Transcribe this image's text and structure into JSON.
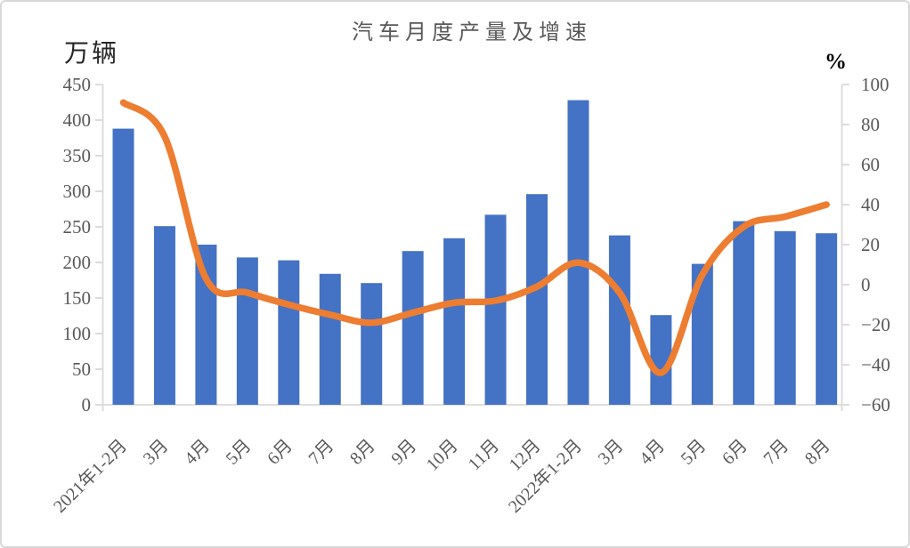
{
  "frame": {
    "background": "#ffffff",
    "border_color": "#d9d9d9"
  },
  "chart_data": {
    "type": "bar",
    "subtype": "bar+line-combo",
    "title": "汽车月度产量及增速",
    "gridlines": "off",
    "legend_position": "none",
    "axis_color": "#d9d9d9",
    "label_color": "#595959",
    "title_color": "#595959",
    "categories": [
      "2021年1-2月",
      "3月",
      "4月",
      "5月",
      "6月",
      "7月",
      "8月",
      "9月",
      "10月",
      "11月",
      "12月",
      "2022年1-2月",
      "3月",
      "4月",
      "5月",
      "6月",
      "7月",
      "8月"
    ],
    "left_axis": {
      "unit_label": "万辆",
      "range": [
        0,
        450
      ],
      "ticks": [
        450,
        400,
        350,
        300,
        250,
        200,
        150,
        100,
        50,
        0
      ]
    },
    "right_axis": {
      "unit_label": "%",
      "range": [
        -60,
        100
      ],
      "ticks": [
        100,
        80,
        60,
        40,
        20,
        0,
        -20,
        -40,
        -60
      ]
    },
    "series": [
      {
        "name": "产量",
        "type": "bar",
        "axis": "left",
        "color": "#4472C4",
        "values": [
          388,
          251,
          225,
          207,
          203,
          184,
          171,
          216,
          234,
          267,
          296,
          428,
          238,
          126,
          198,
          258,
          244,
          241
        ]
      },
      {
        "name": "增速",
        "type": "line",
        "axis": "right",
        "color": "#ED7D31",
        "smooth": true,
        "values": [
          91,
          74,
          3,
          -4,
          -10,
          -15,
          -19,
          -14,
          -9,
          -8,
          -1,
          11,
          -4,
          -44,
          5,
          29,
          34,
          40
        ]
      }
    ]
  }
}
